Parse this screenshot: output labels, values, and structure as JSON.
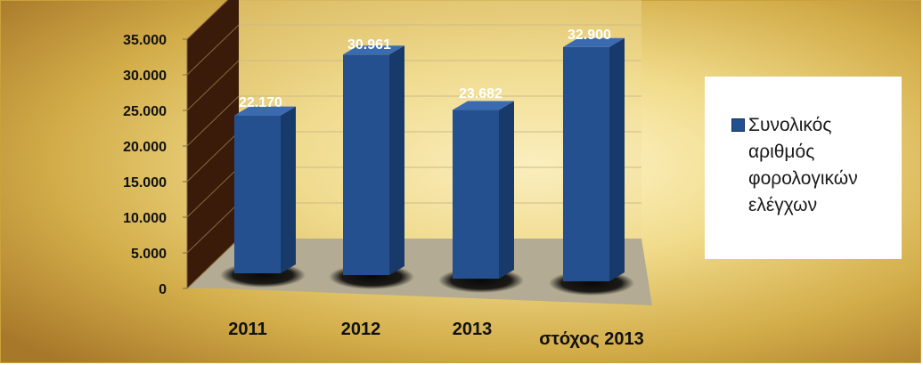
{
  "chart_data": {
    "type": "bar",
    "categories": [
      "2011",
      "2012",
      "2013",
      "στόχος 2013"
    ],
    "series": [
      {
        "name": "Συνολικός αριθμός φορολογικών ελέγχων",
        "values": [
          22170,
          30961,
          23682,
          32900
        ]
      }
    ],
    "value_labels": [
      "22.170",
      "30.961",
      "23.682",
      "32.900"
    ],
    "ylim": [
      0,
      35000
    ],
    "yticks": [
      0,
      5000,
      10000,
      15000,
      20000,
      25000,
      30000,
      35000
    ],
    "ytick_labels": [
      "0",
      "5.000",
      "10.000",
      "15.000",
      "20.000",
      "25.000",
      "30.000",
      "35.000"
    ],
    "grid": true,
    "legend_position": "right",
    "three_d": true,
    "colors": {
      "bar_front": "#24508f",
      "bar_side": "#183a6b",
      "bar_top": "#3a6bb0",
      "left_wall": "#3a1a08",
      "floor": "#b3ab93",
      "value_label": "#ffffff",
      "tick_label": "#111111"
    }
  },
  "legend": {
    "label": "Συνολικός αριθμός φορολογικών ελέγχων"
  }
}
